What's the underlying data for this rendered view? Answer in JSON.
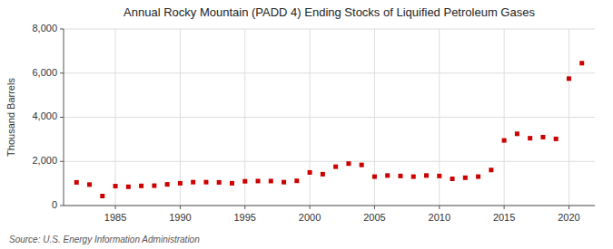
{
  "chart_data": {
    "type": "scatter",
    "title": "Annual Rocky Mountain (PADD 4) Ending Stocks of Liquified Petroleum Gases",
    "ylabel": "Thousand Barrels",
    "source": "Source: U.S. Energy Information Administration",
    "x": [
      1982,
      1983,
      1984,
      1985,
      1986,
      1987,
      1988,
      1989,
      1990,
      1991,
      1992,
      1993,
      1994,
      1995,
      1996,
      1997,
      1998,
      1999,
      2000,
      2001,
      2002,
      2003,
      2004,
      2005,
      2006,
      2007,
      2008,
      2009,
      2010,
      2011,
      2012,
      2013,
      2014,
      2015,
      2016,
      2017,
      2018,
      2019,
      2020,
      2021
    ],
    "values": [
      1050,
      950,
      430,
      880,
      850,
      890,
      900,
      960,
      1010,
      1060,
      1060,
      1050,
      1010,
      1100,
      1110,
      1110,
      1060,
      1120,
      1500,
      1420,
      1760,
      1900,
      1840,
      1310,
      1360,
      1340,
      1310,
      1360,
      1340,
      1210,
      1260,
      1310,
      1610,
      2950,
      3250,
      3050,
      3100,
      3020,
      5750,
      6450
    ],
    "color": "#cc0000",
    "marker": "square",
    "xlim": [
      1981,
      2022
    ],
    "xticks": [
      1985,
      1990,
      1995,
      2000,
      2005,
      2010,
      2015,
      2020
    ],
    "ylim": [
      0,
      8000
    ],
    "yticks": [
      0,
      {
        "value": 2000,
        "label": "2,000"
      },
      {
        "value": 4000,
        "label": "4,000"
      },
      {
        "value": 6000,
        "label": "6,000"
      },
      {
        "value": 8000,
        "label": "8,000"
      }
    ],
    "grid": true
  }
}
